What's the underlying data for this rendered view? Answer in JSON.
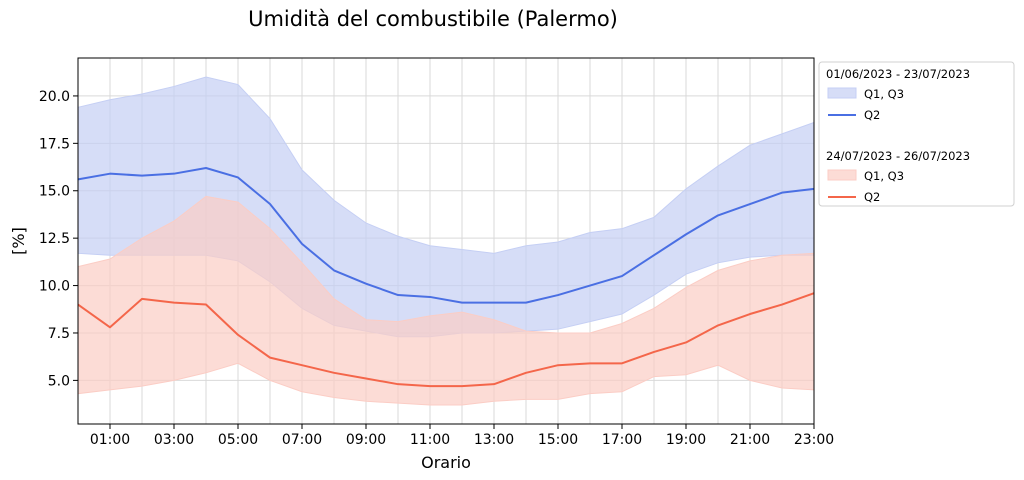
{
  "chart_data": {
    "type": "line",
    "title": "Umidità del combustibile (Palermo)",
    "xlabel": "Orario",
    "ylabel": "[%]",
    "x": [
      0,
      1,
      2,
      3,
      4,
      5,
      6,
      7,
      8,
      9,
      10,
      11,
      12,
      13,
      14,
      15,
      16,
      17,
      18,
      19,
      20,
      21,
      22,
      23
    ],
    "xlim": [
      0,
      23
    ],
    "ylim": [
      2.7,
      22.0
    ],
    "xtick_values": [
      1,
      3,
      5,
      7,
      9,
      11,
      13,
      15,
      17,
      19,
      21,
      23
    ],
    "xtick_labels": [
      "01:00",
      "03:00",
      "05:00",
      "07:00",
      "09:00",
      "11:00",
      "13:00",
      "15:00",
      "17:00",
      "19:00",
      "21:00",
      "23:00"
    ],
    "ytick_values": [
      5.0,
      7.5,
      10.0,
      12.5,
      15.0,
      17.5,
      20.0
    ],
    "ytick_labels": [
      "5.0",
      "7.5",
      "10.0",
      "12.5",
      "15.0",
      "17.5",
      "20.0"
    ],
    "grid": true,
    "legend_position": "outside-right",
    "groups": [
      {
        "period": "01/06/2023 - 23/07/2023",
        "band_label": "Q1, Q3",
        "line_label": "Q2",
        "line_color": "#4a6fe3",
        "band_color": "#c5cff4",
        "q1": [
          11.7,
          11.6,
          11.6,
          11.6,
          11.6,
          11.3,
          10.2,
          8.8,
          7.9,
          7.6,
          7.3,
          7.3,
          7.5,
          7.5,
          7.6,
          7.7,
          8.1,
          8.5,
          9.5,
          10.6,
          11.2,
          11.5,
          11.6,
          11.6
        ],
        "q2": [
          15.6,
          15.9,
          15.8,
          15.9,
          16.2,
          15.7,
          14.3,
          12.2,
          10.8,
          10.1,
          9.5,
          9.4,
          9.1,
          9.1,
          9.1,
          9.5,
          10.0,
          10.5,
          11.6,
          12.7,
          13.7,
          14.3,
          14.9,
          15.1
        ],
        "q3": [
          19.4,
          19.8,
          20.1,
          20.5,
          21.0,
          20.6,
          18.8,
          16.1,
          14.5,
          13.3,
          12.6,
          12.1,
          11.9,
          11.7,
          12.1,
          12.3,
          12.8,
          13.0,
          13.6,
          15.1,
          16.3,
          17.4,
          18.0,
          18.6
        ]
      },
      {
        "period": "24/07/2023 - 26/07/2023",
        "band_label": "Q1, Q3",
        "line_label": "Q2",
        "line_color": "#f4664a",
        "band_color": "#fbcdc5",
        "q1": [
          4.3,
          4.5,
          4.7,
          5.0,
          5.4,
          5.9,
          5.0,
          4.4,
          4.1,
          3.9,
          3.8,
          3.7,
          3.7,
          3.9,
          4.0,
          4.0,
          4.3,
          4.4,
          5.2,
          5.3,
          5.8,
          5.0,
          4.6,
          4.5
        ],
        "q2": [
          9.0,
          7.8,
          9.3,
          9.1,
          9.0,
          7.4,
          6.2,
          5.8,
          5.4,
          5.1,
          4.8,
          4.7,
          4.7,
          4.8,
          5.4,
          5.8,
          5.9,
          5.9,
          6.5,
          7.0,
          7.9,
          8.5,
          9.0,
          9.6
        ],
        "q3": [
          11.0,
          11.4,
          12.5,
          13.4,
          14.7,
          14.4,
          13.0,
          11.2,
          9.3,
          8.2,
          8.1,
          8.4,
          8.6,
          8.2,
          7.6,
          7.5,
          7.5,
          8.0,
          8.8,
          9.9,
          10.8,
          11.3,
          11.6,
          11.7
        ]
      }
    ]
  }
}
